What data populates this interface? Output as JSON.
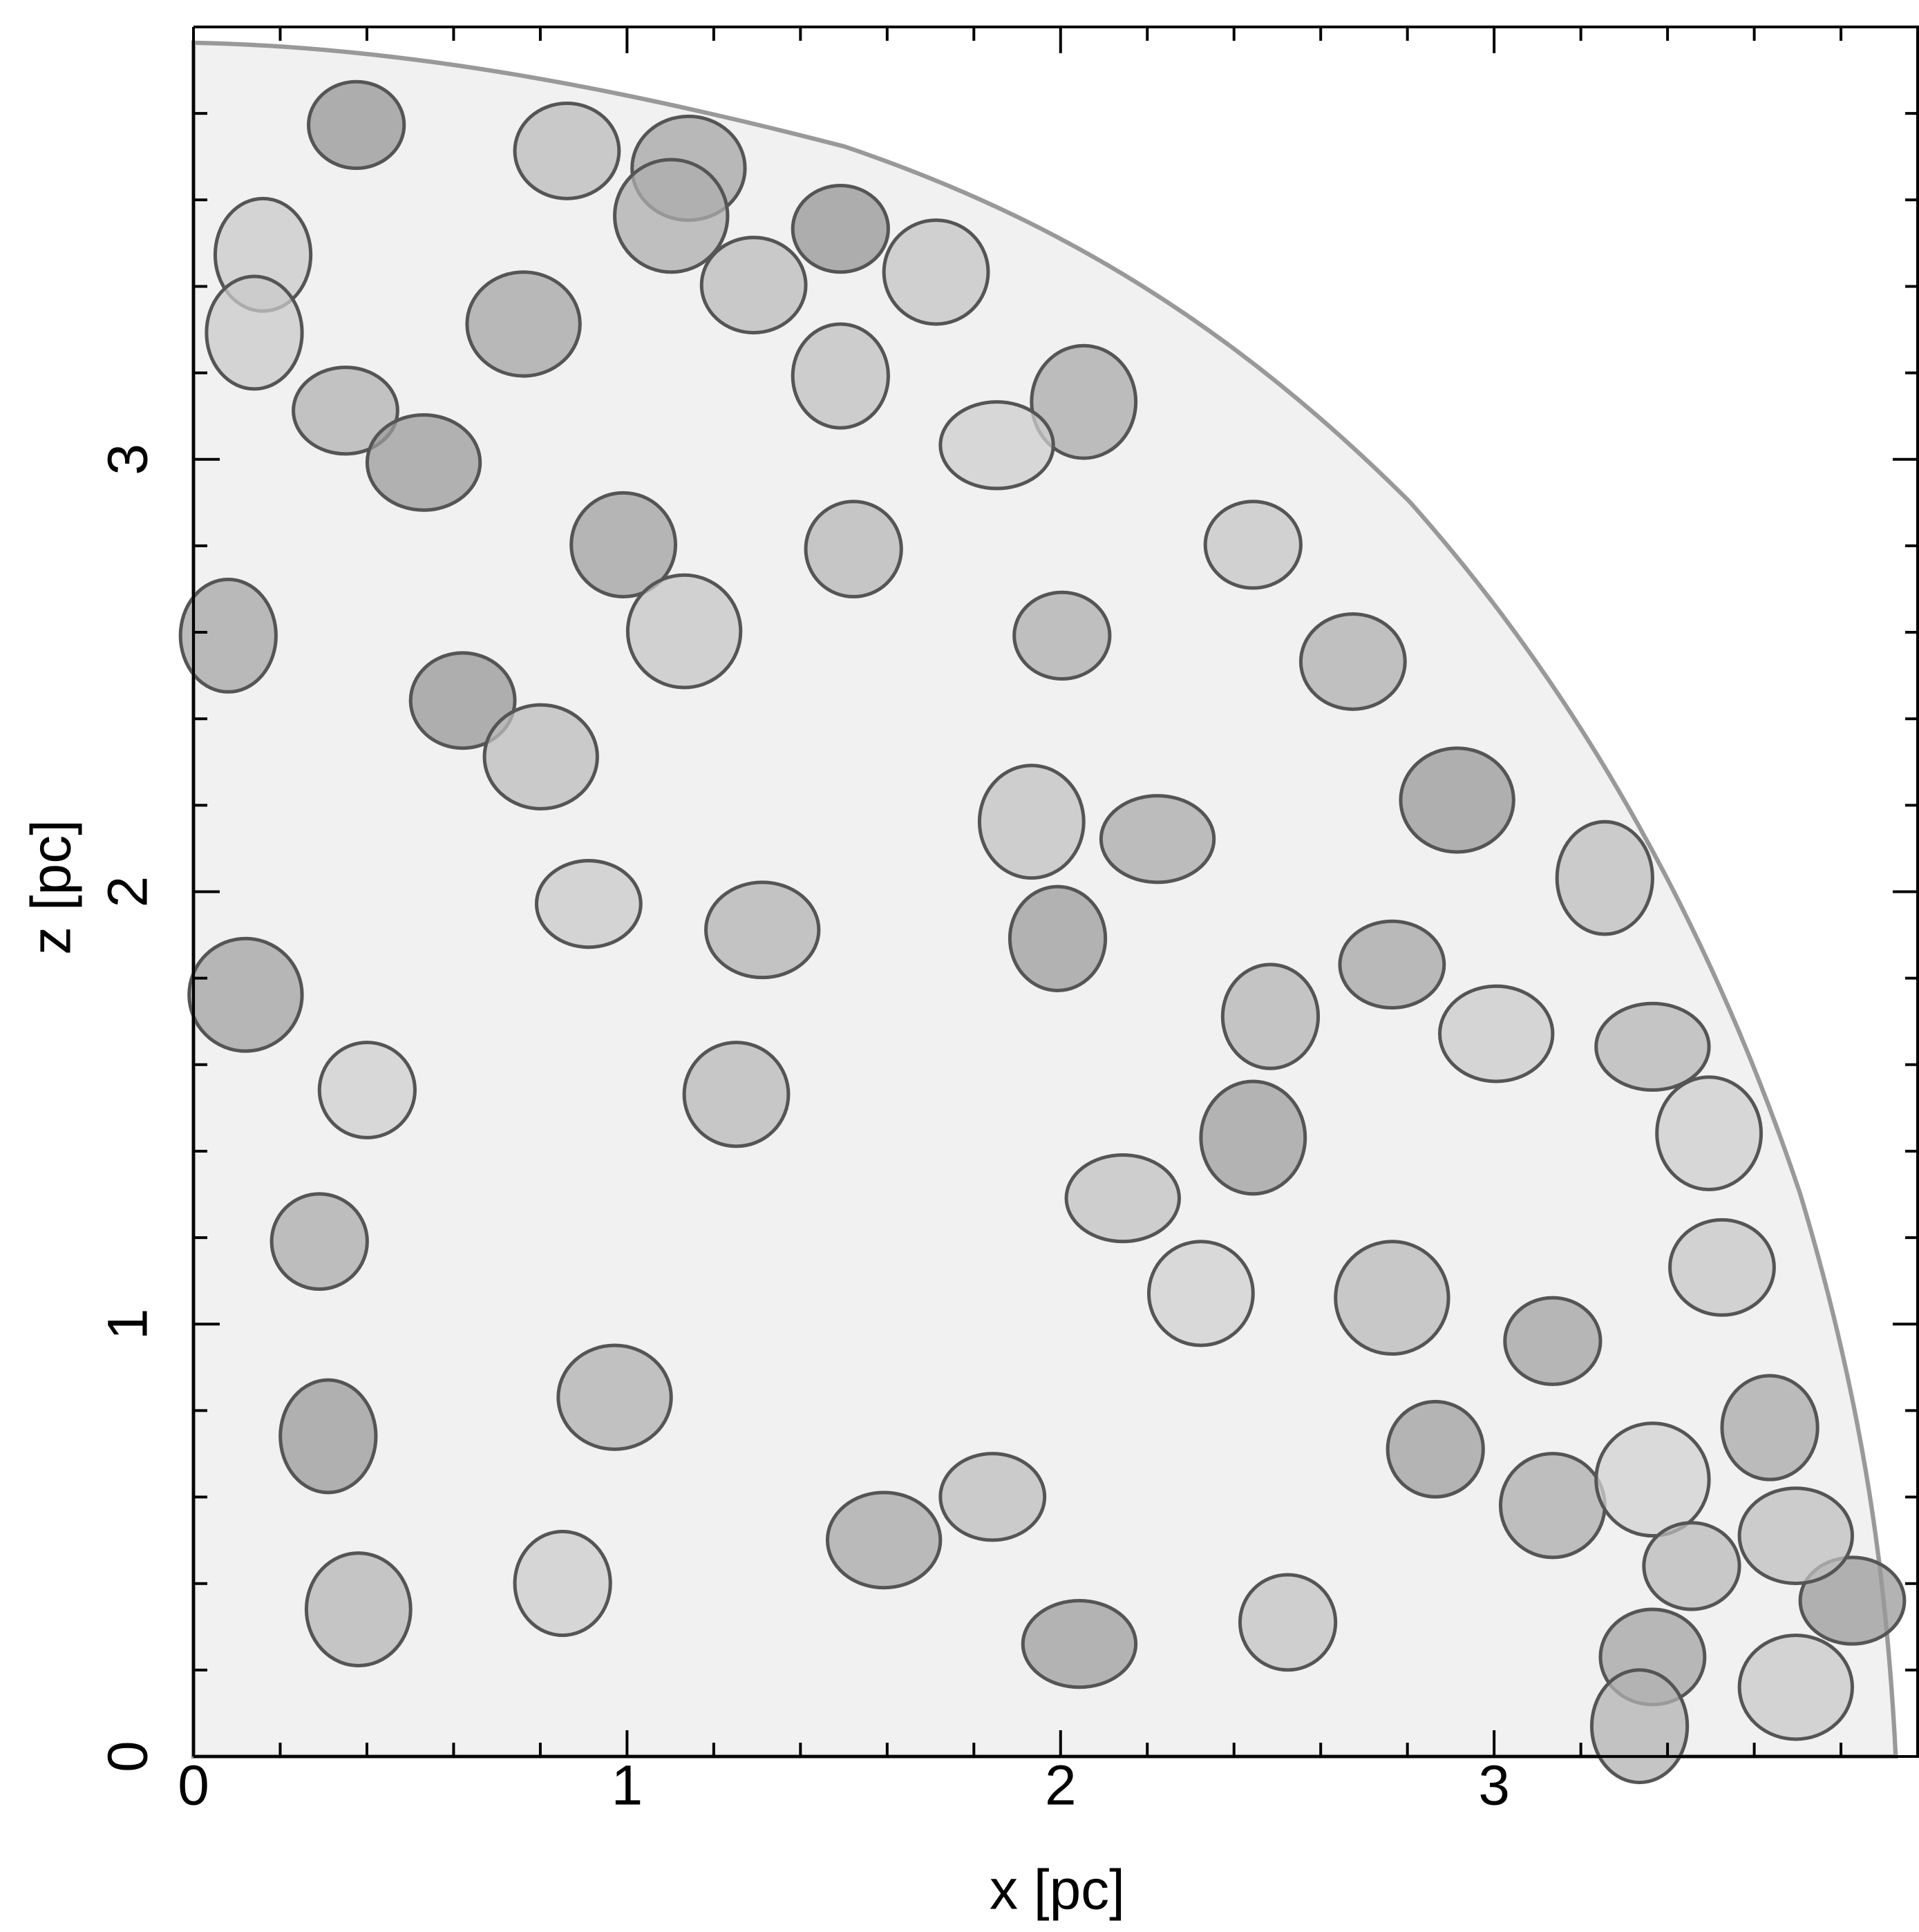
{
  "chart_data": {
    "type": "image",
    "xlabel": "x [pc]",
    "ylabel": "z [pc]",
    "xlim": [
      0,
      3.98
    ],
    "ylim": [
      0,
      4.0
    ],
    "xticks": [
      0,
      1,
      2,
      3
    ],
    "yticks": [
      0,
      1,
      2,
      3
    ],
    "xminorticks": [
      0.2,
      0.4,
      0.6,
      0.8,
      1.2,
      1.4,
      1.6,
      1.8,
      2.2,
      2.4,
      2.6,
      2.8,
      3.2,
      3.4,
      3.6,
      3.8
    ],
    "yminorticks": [
      0.2,
      0.4,
      0.6,
      0.8,
      1.2,
      1.4,
      1.6,
      1.8,
      2.2,
      2.4,
      2.6,
      2.8,
      3.2,
      3.4,
      3.6,
      3.8
    ]
  }
}
